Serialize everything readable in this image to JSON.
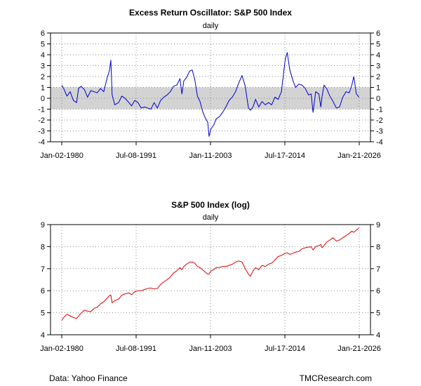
{
  "footer": {
    "left": "Data: Yahoo Finance",
    "right": "TMCResearch.com"
  },
  "chart_data": [
    {
      "type": "line",
      "title": "Excess Return Oscillator: S&P 500 Index",
      "subtitle": "daily",
      "xlabel": "",
      "ylabel": "",
      "x_tick_labels": [
        "Jan-02-1980",
        "Jul-08-1991",
        "Jan-11-2003",
        "Jul-17-2014",
        "Jan-21-2026"
      ],
      "xlim": [
        1980.0,
        2026.05
      ],
      "ylim": [
        -4,
        6
      ],
      "y_ticks": [
        -4,
        -3,
        -2,
        -1,
        0,
        1,
        2,
        3,
        4,
        5,
        6
      ],
      "band": [
        -1,
        1
      ],
      "grid": true,
      "series": [
        {
          "name": "Excess Return Oscillator",
          "color": "#0000cc",
          "x": [
            1980.0,
            1980.3,
            1980.8,
            1981.3,
            1981.8,
            1982.3,
            1982.6,
            1983.0,
            1983.5,
            1984.0,
            1984.5,
            1985.0,
            1985.5,
            1986.0,
            1986.5,
            1987.0,
            1987.4,
            1987.6,
            1987.8,
            1988.2,
            1988.8,
            1989.3,
            1989.8,
            1990.4,
            1990.8,
            1991.3,
            1991.8,
            1992.3,
            1992.8,
            1993.3,
            1993.8,
            1994.3,
            1994.8,
            1995.3,
            1995.8,
            1996.3,
            1996.8,
            1997.3,
            1997.8,
            1998.3,
            1998.6,
            1998.9,
            1999.3,
            1999.8,
            2000.2,
            2000.6,
            2001.0,
            2001.4,
            2001.8,
            2002.2,
            2002.6,
            2002.8,
            2003.1,
            2003.5,
            2003.9,
            2004.4,
            2004.9,
            2005.4,
            2005.9,
            2006.4,
            2006.9,
            2007.4,
            2007.9,
            2008.4,
            2008.9,
            2009.2,
            2009.6,
            2010.0,
            2010.5,
            2011.0,
            2011.5,
            2012.0,
            2012.5,
            2013.0,
            2013.5,
            2014.0,
            2014.3,
            2014.6,
            2014.9,
            2015.3,
            2015.8,
            2016.2,
            2016.7,
            2017.2,
            2017.7,
            2018.2,
            2018.6,
            2018.9,
            2019.3,
            2019.8,
            2020.1,
            2020.3,
            2020.6,
            2021.0,
            2021.5,
            2022.0,
            2022.5,
            2023.0,
            2023.5,
            2024.0,
            2024.5,
            2024.9,
            2025.2,
            2025.6,
            2026.0
          ],
          "y": [
            1.2,
            0.9,
            0.2,
            0.6,
            -0.2,
            -0.4,
            0.9,
            1.1,
            0.8,
            0.1,
            0.7,
            0.6,
            0.5,
            0.9,
            0.6,
            1.8,
            2.6,
            3.5,
            0.3,
            -0.6,
            -0.4,
            0.2,
            0.0,
            -0.4,
            -0.7,
            -0.2,
            -0.4,
            -0.9,
            -0.8,
            -0.9,
            -1.0,
            -0.4,
            -0.9,
            -0.2,
            0.1,
            0.3,
            0.6,
            1.1,
            1.2,
            1.8,
            0.4,
            1.6,
            1.9,
            2.5,
            2.6,
            1.7,
            0.2,
            -0.3,
            -1.2,
            -1.8,
            -2.2,
            -3.5,
            -2.8,
            -2.5,
            -1.9,
            -1.7,
            -1.3,
            -0.8,
            -0.2,
            0.1,
            0.6,
            1.4,
            2.1,
            1.1,
            -0.9,
            -1.1,
            -0.8,
            -0.1,
            -0.8,
            -0.3,
            -0.6,
            -0.4,
            -0.6,
            0.1,
            -0.1,
            0.6,
            2.1,
            3.6,
            4.2,
            2.6,
            1.6,
            1.0,
            1.3,
            1.2,
            0.9,
            0.3,
            0.4,
            -1.3,
            0.6,
            0.4,
            -0.8,
            0.2,
            1.2,
            0.9,
            0.2,
            -0.3,
            -0.9,
            -0.8,
            0.1,
            0.6,
            0.5,
            1.2,
            2.0,
            0.4,
            0.1
          ]
        }
      ]
    },
    {
      "type": "line",
      "title": "S&P 500 Index (log)",
      "subtitle": "daily",
      "xlabel": "",
      "ylabel": "",
      "x_tick_labels": [
        "Jan-02-1980",
        "Jul-08-1991",
        "Jan-11-2003",
        "Jul-17-2014",
        "Jan-21-2026"
      ],
      "xlim": [
        1980.0,
        2026.05
      ],
      "ylim": [
        4,
        9
      ],
      "y_ticks": [
        4,
        5,
        6,
        7,
        8,
        9
      ],
      "grid": true,
      "series": [
        {
          "name": "S&P 500 Index (log)",
          "color": "#dd0000",
          "x": [
            1980.0,
            1980.3,
            1980.8,
            1981.3,
            1981.8,
            1982.3,
            1982.6,
            1983.0,
            1983.5,
            1984.0,
            1984.5,
            1985.0,
            1985.5,
            1986.0,
            1986.5,
            1987.0,
            1987.4,
            1987.6,
            1987.8,
            1988.2,
            1988.8,
            1989.3,
            1989.8,
            1990.4,
            1990.8,
            1991.3,
            1991.8,
            1992.3,
            1992.8,
            1993.3,
            1993.8,
            1994.3,
            1994.8,
            1995.3,
            1995.8,
            1996.3,
            1996.8,
            1997.3,
            1997.8,
            1998.3,
            1998.6,
            1998.9,
            1999.3,
            1999.8,
            2000.2,
            2000.6,
            2001.0,
            2001.4,
            2001.8,
            2002.2,
            2002.6,
            2002.8,
            2003.1,
            2003.5,
            2003.9,
            2004.4,
            2004.9,
            2005.4,
            2005.9,
            2006.4,
            2006.9,
            2007.4,
            2007.9,
            2008.4,
            2008.9,
            2009.2,
            2009.6,
            2010.0,
            2010.5,
            2011.0,
            2011.5,
            2012.0,
            2012.5,
            2013.0,
            2013.5,
            2014.0,
            2014.3,
            2014.6,
            2014.9,
            2015.3,
            2015.8,
            2016.2,
            2016.7,
            2017.2,
            2017.7,
            2018.2,
            2018.6,
            2018.9,
            2019.3,
            2019.8,
            2020.1,
            2020.3,
            2020.6,
            2021.0,
            2021.5,
            2022.0,
            2022.5,
            2023.0,
            2023.5,
            2024.0,
            2024.5,
            2024.9,
            2025.2,
            2025.6,
            2026.0
          ],
          "y": [
            4.65,
            4.78,
            4.93,
            4.86,
            4.78,
            4.74,
            4.85,
            4.98,
            5.12,
            5.07,
            5.05,
            5.2,
            5.25,
            5.4,
            5.5,
            5.65,
            5.78,
            5.8,
            5.45,
            5.55,
            5.62,
            5.8,
            5.86,
            5.9,
            5.82,
            5.95,
            6.0,
            6.0,
            6.05,
            6.1,
            6.12,
            6.08,
            6.1,
            6.28,
            6.4,
            6.5,
            6.62,
            6.8,
            6.9,
            7.05,
            6.95,
            7.1,
            7.2,
            7.3,
            7.3,
            7.25,
            7.1,
            7.05,
            6.95,
            6.85,
            6.75,
            6.75,
            6.9,
            6.95,
            7.05,
            7.05,
            7.1,
            7.1,
            7.15,
            7.2,
            7.3,
            7.35,
            7.3,
            7.0,
            6.75,
            6.65,
            6.9,
            7.05,
            6.95,
            7.15,
            7.1,
            7.2,
            7.25,
            7.4,
            7.55,
            7.6,
            7.65,
            7.7,
            7.72,
            7.65,
            7.7,
            7.75,
            7.78,
            7.9,
            7.95,
            7.98,
            7.99,
            7.85,
            8.0,
            8.05,
            8.1,
            7.95,
            8.05,
            8.2,
            8.3,
            8.4,
            8.25,
            8.3,
            8.4,
            8.5,
            8.6,
            8.7,
            8.65,
            8.75,
            8.85
          ]
        }
      ]
    }
  ]
}
